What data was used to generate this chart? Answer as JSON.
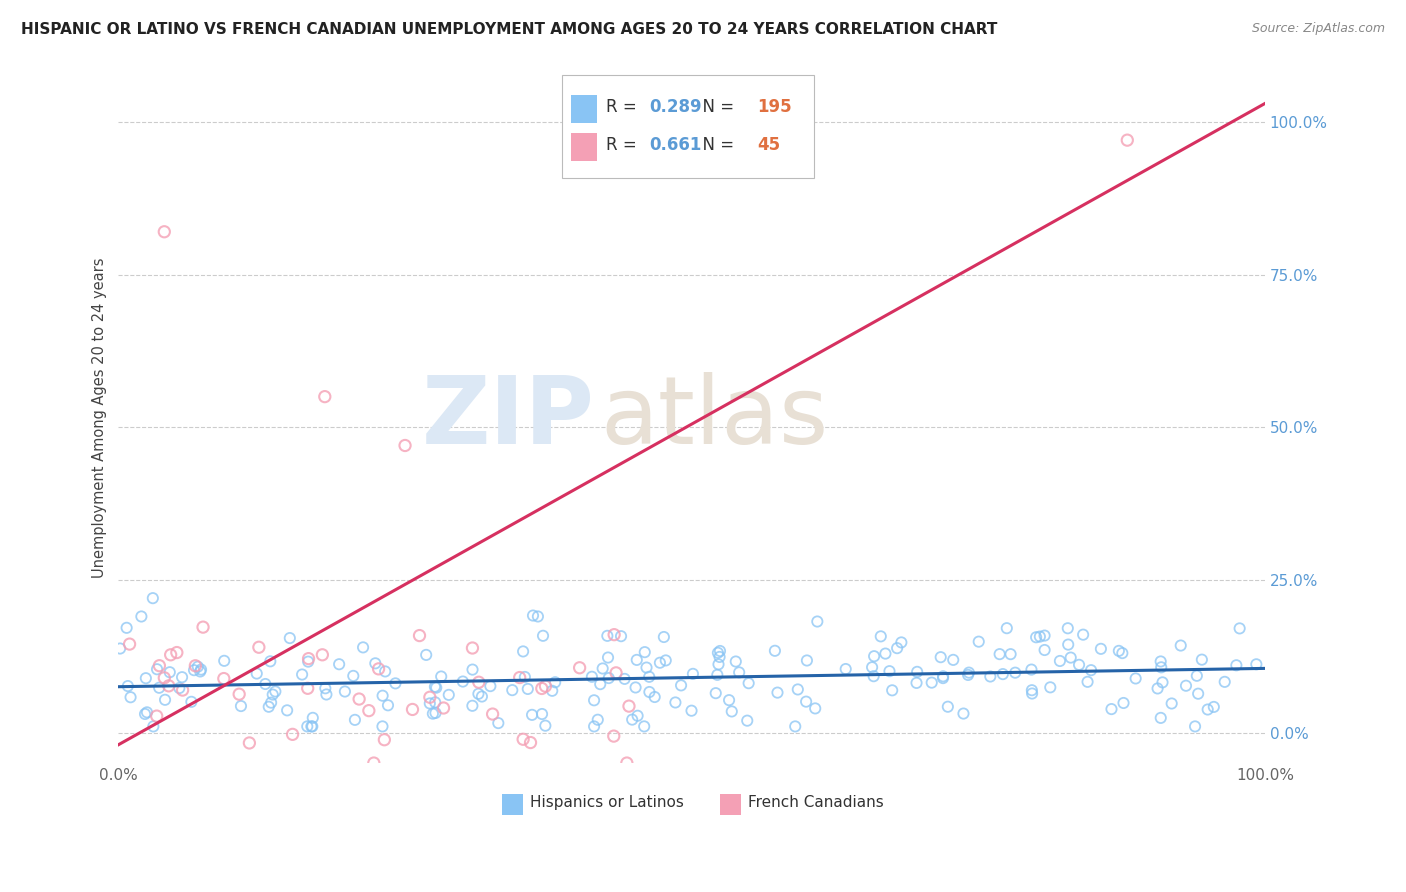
{
  "title": "HISPANIC OR LATINO VS FRENCH CANADIAN UNEMPLOYMENT AMONG AGES 20 TO 24 YEARS CORRELATION CHART",
  "source": "Source: ZipAtlas.com",
  "ylabel": "Unemployment Among Ages 20 to 24 years",
  "xlim": [
    0.0,
    1.0
  ],
  "ylim": [
    -0.05,
    1.08
  ],
  "yticks": [
    0.0,
    0.25,
    0.5,
    0.75,
    1.0
  ],
  "ytick_labels": [
    "0.0%",
    "25.0%",
    "50.0%",
    "75.0%",
    "100.0%"
  ],
  "xtick_labels": [
    "0.0%",
    "100.0%"
  ],
  "blue_color": "#89c4f4",
  "pink_color": "#f4a0b5",
  "blue_line_color": "#2563a8",
  "pink_line_color": "#d63060",
  "legend_blue_R": "0.289",
  "legend_blue_N": "195",
  "legend_pink_R": "0.661",
  "legend_pink_N": "45",
  "legend_label_blue": "Hispanics or Latinos",
  "legend_label_pink": "French Canadians",
  "watermark_zip": "ZIP",
  "watermark_atlas": "atlas",
  "background_color": "#ffffff",
  "grid_color": "#cccccc",
  "title_color": "#222222",
  "axis_label_color": "#444444",
  "tick_color_blue": "#5b9bd5",
  "tick_color_x": "#666666",
  "R_color": "#5b9bd5",
  "N_color": "#e07040",
  "seed": 7,
  "blue_n": 195,
  "pink_n": 45,
  "blue_slope": 0.03,
  "blue_intercept": 0.075,
  "blue_noise": 0.045,
  "pink_slope": 1.05,
  "pink_intercept": -0.02,
  "pink_noise": 0.06
}
